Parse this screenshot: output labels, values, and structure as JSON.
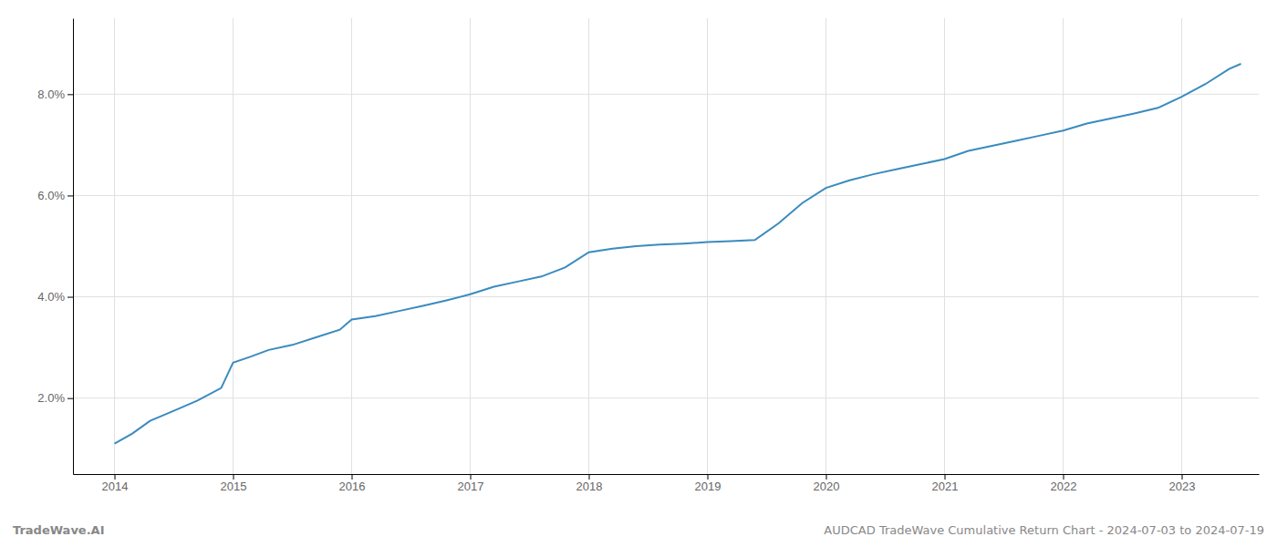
{
  "chart_data": {
    "type": "line",
    "title": "AUDCAD TradeWave Cumulative Return Chart - 2024-07-03 to 2024-07-19",
    "annotations": [
      "TradeWave.AI"
    ],
    "x": [
      2014.0,
      2014.15,
      2014.3,
      2014.5,
      2014.7,
      2014.9,
      2015.0,
      2015.15,
      2015.3,
      2015.5,
      2015.7,
      2015.9,
      2016.0,
      2016.2,
      2016.4,
      2016.6,
      2016.8,
      2017.0,
      2017.2,
      2017.4,
      2017.6,
      2017.8,
      2018.0,
      2018.2,
      2018.4,
      2018.6,
      2018.8,
      2019.0,
      2019.2,
      2019.4,
      2019.6,
      2019.8,
      2020.0,
      2020.2,
      2020.4,
      2020.6,
      2020.8,
      2021.0,
      2021.2,
      2021.4,
      2021.6,
      2021.8,
      2022.0,
      2022.2,
      2022.4,
      2022.6,
      2022.8,
      2023.0,
      2023.2,
      2023.4,
      2023.5
    ],
    "values": [
      1.1,
      1.3,
      1.55,
      1.75,
      1.95,
      2.2,
      2.7,
      2.82,
      2.95,
      3.05,
      3.2,
      3.35,
      3.55,
      3.62,
      3.72,
      3.82,
      3.93,
      4.05,
      4.2,
      4.3,
      4.4,
      4.58,
      4.88,
      4.95,
      5.0,
      5.03,
      5.05,
      5.08,
      5.1,
      5.12,
      5.45,
      5.85,
      6.15,
      6.3,
      6.42,
      6.52,
      6.62,
      6.72,
      6.88,
      6.98,
      7.08,
      7.18,
      7.28,
      7.42,
      7.52,
      7.62,
      7.73,
      7.95,
      8.2,
      8.5,
      8.6
    ],
    "color": "#3a8bbf",
    "xlim": [
      2013.65,
      2023.65
    ],
    "ylim": [
      0.5,
      9.5
    ],
    "xticks": [
      2014,
      2015,
      2016,
      2017,
      2018,
      2019,
      2020,
      2021,
      2022,
      2023
    ],
    "yticks": [
      {
        "value": 2.0,
        "label": "2.0%"
      },
      {
        "value": 4.0,
        "label": "4.0%"
      },
      {
        "value": 6.0,
        "label": "6.0%"
      },
      {
        "value": 8.0,
        "label": "8.0%"
      }
    ],
    "grid": true
  }
}
